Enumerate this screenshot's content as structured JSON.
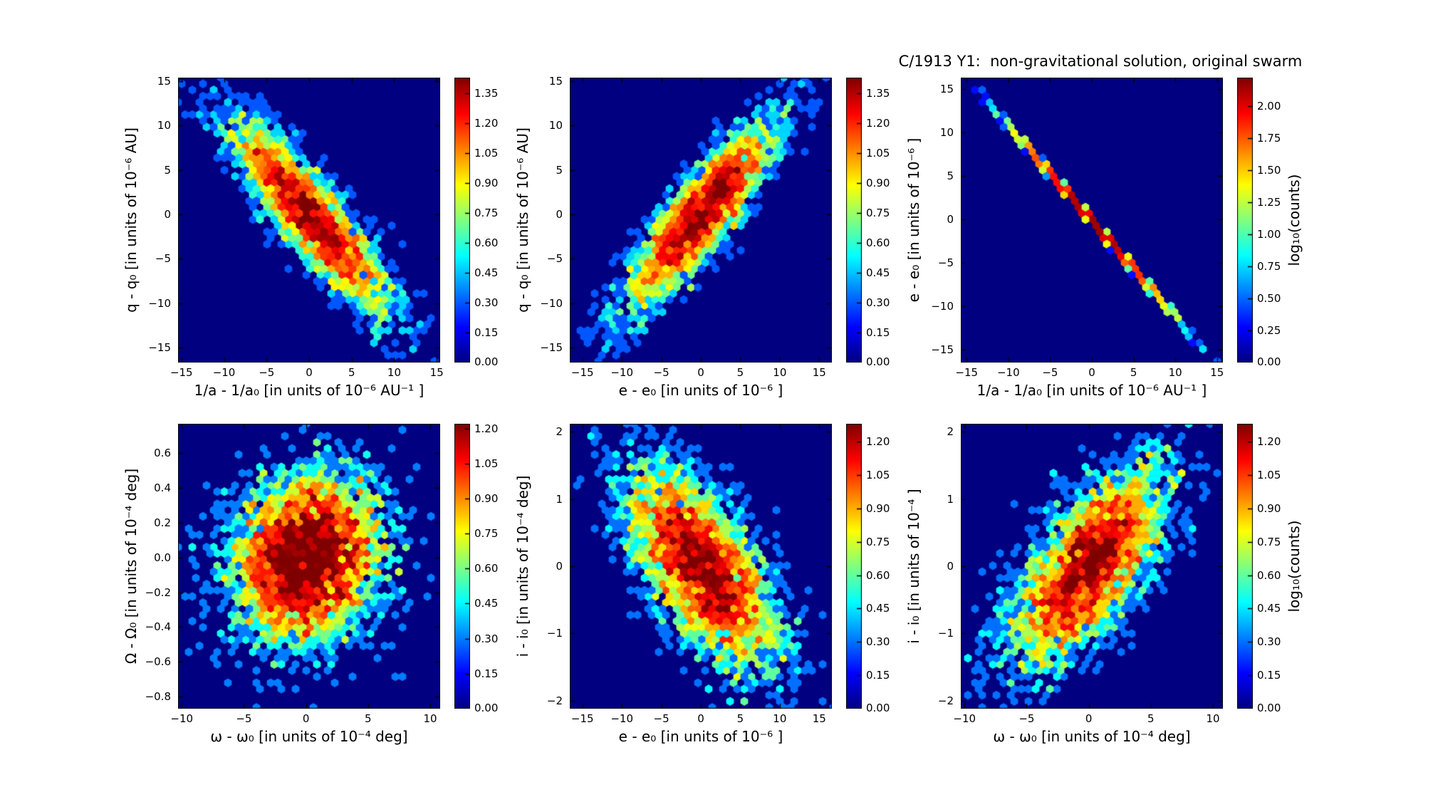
{
  "chart_data": {
    "type": "hexbin",
    "title": "C/1913 Y1:  non-gravitational solution, original swarm",
    "colormap": "jet",
    "bin_value": "log10(counts)",
    "background_color": "#000082",
    "figure_background": "#ffffff",
    "panels": [
      {
        "id": "daq-vs-q",
        "row": 0,
        "col": 0,
        "xlabel": "1/a - 1/a₀ [in units of 10⁻⁶ AU⁻¹ ]",
        "ylabel": "q - q₀ [in units of 10⁻⁶ AU]",
        "xlim": [
          -15.4,
          15.4
        ],
        "ylim": [
          -16.7,
          15.4
        ],
        "xticks": [
          -15,
          -10,
          -5,
          0,
          5,
          10,
          15
        ],
        "yticks": [
          -15,
          -10,
          -5,
          0,
          5,
          10,
          15
        ],
        "xtick_decimals": 0,
        "ytick_decimals": 0,
        "relationship": "strong negative correlation",
        "dist": {
          "kind": "gaussian",
          "n": 3200,
          "center": [
            0,
            0
          ],
          "sigma": [
            4.6,
            5.4
          ],
          "rho": -0.88,
          "seed": 11
        },
        "colorbar": {
          "vmax": 1.43,
          "label": "",
          "ticks": [
            "1.35",
            "1.20",
            "1.05",
            "0.90",
            "0.75",
            "0.60",
            "0.45",
            "0.30",
            "0.15",
            "0.00"
          ]
        }
      },
      {
        "id": "de-vs-q",
        "row": 0,
        "col": 1,
        "xlabel": "e - e₀ [in units of 10⁻⁶ ]",
        "ylabel": "q - q₀ [in units of 10⁻⁶ AU]",
        "xlim": [
          -16.6,
          16.6
        ],
        "ylim": [
          -16.7,
          15.4
        ],
        "xticks": [
          -15,
          -10,
          -5,
          0,
          5,
          10,
          15
        ],
        "yticks": [
          -15,
          -10,
          -5,
          0,
          5,
          10,
          15
        ],
        "xtick_decimals": 0,
        "ytick_decimals": 0,
        "relationship": "strong positive correlation",
        "dist": {
          "kind": "gaussian",
          "n": 3200,
          "center": [
            0,
            0
          ],
          "sigma": [
            4.8,
            5.4
          ],
          "rho": 0.88,
          "seed": 22
        },
        "colorbar": {
          "vmax": 1.43,
          "label": "",
          "ticks": [
            "1.35",
            "1.20",
            "1.05",
            "0.90",
            "0.75",
            "0.60",
            "0.45",
            "0.30",
            "0.15",
            "0.00"
          ]
        }
      },
      {
        "id": "daq-vs-e",
        "row": 0,
        "col": 2,
        "xlabel": "1/a - 1/a₀ [in units of 10⁻⁶ AU⁻¹ ]",
        "ylabel": "e - e₀ [in units of 10⁻⁶ ]",
        "xlim": [
          -15.7,
          15.7
        ],
        "ylim": [
          -16.5,
          16.3
        ],
        "xticks": [
          -15,
          -10,
          -5,
          0,
          5,
          10,
          15
        ],
        "yticks": [
          -15,
          -10,
          -5,
          0,
          5,
          10,
          15
        ],
        "xtick_decimals": 0,
        "ytick_decimals": 0,
        "relationship": "near-perfect anti-correlation (thin line)",
        "dist": {
          "kind": "line",
          "n": 3000,
          "sigma_x": 4.6,
          "slope": -1.1,
          "intercept": -0.2,
          "noise": 0.12,
          "seed": 33
        },
        "colorbar": {
          "vmax": 2.22,
          "label": "log₁₀(counts)",
          "ticks": [
            "2.00",
            "1.75",
            "1.50",
            "1.25",
            "1.00",
            "0.75",
            "0.50",
            "0.25",
            "0.00"
          ]
        }
      },
      {
        "id": "dom-vs-Om",
        "row": 1,
        "col": 0,
        "xlabel": "ω - ω₀ [in units of 10⁻⁴ deg]",
        "ylabel": "Ω - Ω₀ [in units of 10⁻⁴ deg]",
        "xlim": [
          -10.3,
          10.8
        ],
        "ylim": [
          -0.87,
          0.77
        ],
        "xticks": [
          -10,
          -5,
          0,
          5,
          10
        ],
        "yticks": [
          -0.8,
          -0.6,
          -0.4,
          -0.2,
          0.0,
          0.2,
          0.4,
          0.6
        ],
        "xtick_decimals": 0,
        "ytick_decimals": 1,
        "relationship": "weak correlation, round cloud",
        "dist": {
          "kind": "gaussian",
          "n": 4500,
          "center": [
            0,
            0
          ],
          "sigma": [
            3.0,
            0.24
          ],
          "rho": 0.12,
          "seed": 44
        },
        "colorbar": {
          "vmax": 1.22,
          "label": "",
          "ticks": [
            "1.20",
            "1.05",
            "0.90",
            "0.75",
            "0.60",
            "0.45",
            "0.30",
            "0.15",
            "0.00"
          ]
        }
      },
      {
        "id": "de-vs-i",
        "row": 1,
        "col": 1,
        "xlabel": "e - e₀ [in units of 10⁻⁶ ]",
        "ylabel": "i - i₀ [in units of 10⁻⁴ deg]",
        "xlim": [
          -16.6,
          16.6
        ],
        "ylim": [
          -2.12,
          2.12
        ],
        "xticks": [
          -15,
          -10,
          -5,
          0,
          5,
          10,
          15
        ],
        "yticks": [
          -2,
          -1,
          0,
          1,
          2
        ],
        "xtick_decimals": 0,
        "ytick_decimals": 0,
        "relationship": "moderate negative correlation",
        "dist": {
          "kind": "gaussian",
          "n": 3800,
          "center": [
            0,
            0
          ],
          "sigma": [
            4.8,
            0.75
          ],
          "rho": -0.66,
          "seed": 55
        },
        "colorbar": {
          "vmax": 1.28,
          "label": "",
          "ticks": [
            "1.20",
            "1.05",
            "0.90",
            "0.75",
            "0.60",
            "0.45",
            "0.30",
            "0.15",
            "0.00"
          ]
        }
      },
      {
        "id": "dom-vs-i",
        "row": 1,
        "col": 2,
        "xlabel": "ω - ω₀ [in units of 10⁻⁴ deg]",
        "ylabel": "i - i₀ [in units of 10⁻⁴ ]",
        "xlim": [
          -10.3,
          10.8
        ],
        "ylim": [
          -2.12,
          2.12
        ],
        "xticks": [
          -10,
          -5,
          0,
          5,
          10
        ],
        "yticks": [
          -2,
          -1,
          0,
          1,
          2
        ],
        "xtick_decimals": 0,
        "ytick_decimals": 0,
        "relationship": "moderate positive correlation",
        "dist": {
          "kind": "gaussian",
          "n": 3600,
          "center": [
            0,
            0
          ],
          "sigma": [
            3.1,
            0.73
          ],
          "rho": 0.68,
          "seed": 66
        },
        "colorbar": {
          "vmax": 1.28,
          "label": "log₁₀(counts)",
          "ticks": [
            "1.20",
            "1.05",
            "0.90",
            "0.75",
            "0.60",
            "0.45",
            "0.30",
            "0.15",
            "0.00"
          ]
        }
      }
    ]
  }
}
